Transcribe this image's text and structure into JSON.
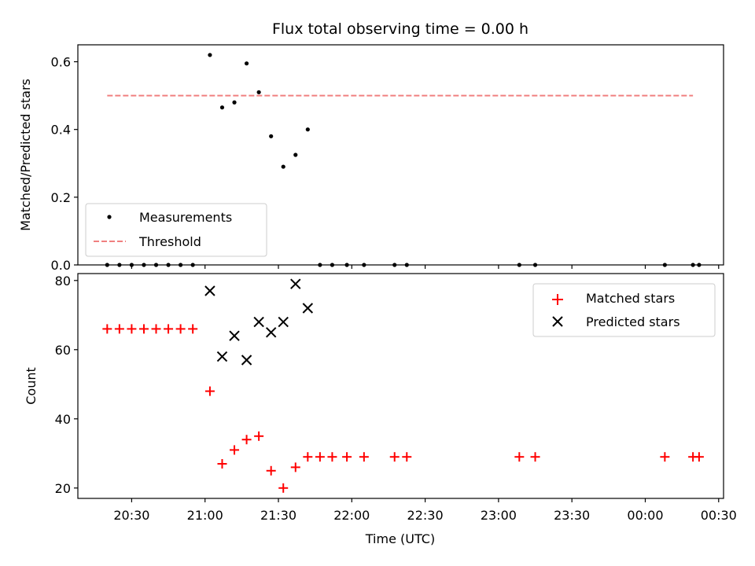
{
  "chart_data": {
    "type": "scatter",
    "title": "Flux total observing time = 0.00 h",
    "xlabel": "Time (UTC)",
    "x_ticks": [
      "20:30",
      "21:00",
      "21:30",
      "22:00",
      "22:30",
      "23:00",
      "23:30",
      "00:00",
      "00:30"
    ],
    "x_tick_minutes": [
      1230,
      1260,
      1290,
      1320,
      1350,
      1380,
      1410,
      1440,
      1470
    ],
    "xlim_minutes": [
      1208,
      1472
    ],
    "colors": {
      "measurements": "#000000",
      "threshold": "#f08080",
      "matched": "#ff0000",
      "predicted": "#000000"
    },
    "panels": [
      {
        "ylabel": "Matched/Predicted stars",
        "ylim": [
          0,
          0.65
        ],
        "y_ticks": [
          0.0,
          0.2,
          0.4,
          0.6
        ],
        "y_tick_labels": [
          "0.0",
          "0.2",
          "0.4",
          "0.6"
        ],
        "legend": {
          "position": "lower-left",
          "entries": [
            "Measurements",
            "Threshold"
          ]
        },
        "series": [
          {
            "name": "Measurements",
            "marker": "dot",
            "x_minutes": [
              1220,
              1225,
              1230,
              1235,
              1240,
              1245,
              1250,
              1255,
              1262,
              1267,
              1272,
              1277,
              1282,
              1287,
              1292,
              1297,
              1302,
              1307,
              1312,
              1318,
              1325,
              1337.5,
              1342.5,
              1388.5,
              1395,
              1448,
              1459.5,
              1462
            ],
            "y": [
              0,
              0,
              0,
              0,
              0,
              0,
              0,
              0,
              0.62,
              0.465,
              0.48,
              0.595,
              0.51,
              0.38,
              0.29,
              0.325,
              0.4,
              0,
              0,
              0,
              0,
              0,
              0,
              0,
              0,
              0,
              0,
              0
            ]
          },
          {
            "name": "Threshold",
            "marker": "dashed-line",
            "x_minutes": [
              1220,
              1459.5
            ],
            "y": [
              0.5,
              0.5
            ]
          }
        ]
      },
      {
        "ylabel": "Count",
        "ylim": [
          17,
          82
        ],
        "y_ticks": [
          20,
          40,
          60,
          80
        ],
        "y_tick_labels": [
          "20",
          "40",
          "60",
          "80"
        ],
        "legend": {
          "position": "upper-right",
          "entries": [
            "Matched stars",
            "Predicted stars"
          ]
        },
        "series": [
          {
            "name": "Matched stars",
            "marker": "plus",
            "x_minutes": [
              1220,
              1225,
              1230,
              1235,
              1240,
              1245,
              1250,
              1255,
              1262,
              1267,
              1272,
              1277,
              1282,
              1287,
              1292,
              1297,
              1302,
              1307,
              1312,
              1318,
              1325,
              1337.5,
              1342.5,
              1388.5,
              1395,
              1448,
              1459.5,
              1462
            ],
            "y": [
              66,
              66,
              66,
              66,
              66,
              66,
              66,
              66,
              48,
              27,
              31,
              34,
              35,
              25,
              20,
              26,
              29,
              29,
              29,
              29,
              29,
              29,
              29,
              29,
              29,
              29,
              29,
              29
            ]
          },
          {
            "name": "Predicted stars",
            "marker": "x",
            "x_minutes": [
              1262,
              1267,
              1272,
              1277,
              1282,
              1287,
              1292,
              1297,
              1302
            ],
            "y": [
              77,
              58,
              64,
              57,
              68,
              65,
              68,
              79,
              72
            ]
          }
        ]
      }
    ]
  }
}
